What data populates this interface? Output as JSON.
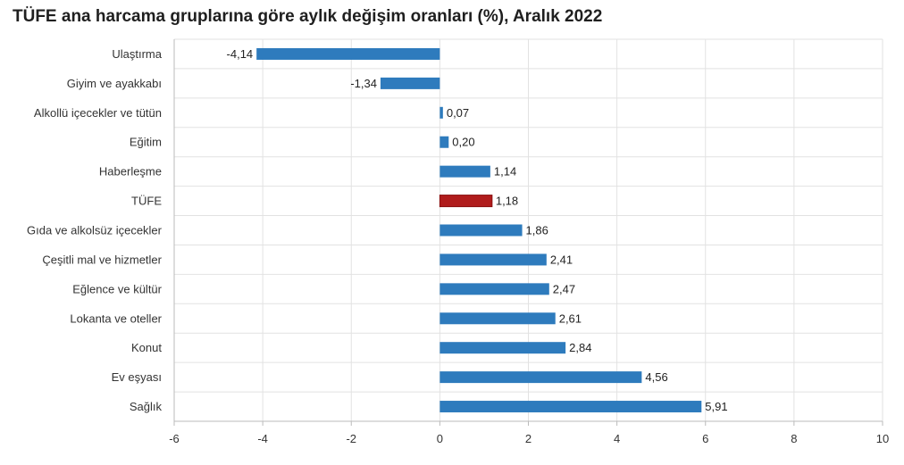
{
  "chart_data": {
    "type": "bar",
    "orientation": "horizontal",
    "title": "TÜFE ana harcama gruplarına göre aylık değişim oranları (%), Aralık 2022",
    "categories": [
      "Ulaştırma",
      "Giyim ve ayakkabı",
      "Alkollü içecekler ve tütün",
      "Eğitim",
      "Haberleşme",
      "TÜFE",
      "Gıda ve alkolsüz içecekler",
      "Çeşitli mal ve hizmetler",
      "Eğlence ve kültür",
      "Lokanta ve oteller",
      "Konut",
      "Ev eşyası",
      "Sağlık"
    ],
    "values": [
      -4.14,
      -1.34,
      0.07,
      0.2,
      1.14,
      1.18,
      1.86,
      2.41,
      2.47,
      2.61,
      2.84,
      4.56,
      5.91
    ],
    "value_labels": [
      "-4,14",
      "-1,34",
      "0,07",
      "0,20",
      "1,14",
      "1,18",
      "1,86",
      "2,41",
      "2,47",
      "2,61",
      "2,84",
      "4,56",
      "5,91"
    ],
    "highlight_category": "TÜFE",
    "xlim": [
      -6,
      10
    ],
    "xticks": [
      "-6",
      "-4",
      "-2",
      "0",
      "2",
      "4",
      "6",
      "8",
      "10"
    ],
    "grid": true,
    "colors": {
      "bar": "#2e7bbd",
      "highlight": "#b01c1c",
      "grid": "#e2e2e2",
      "axis": "#bbbbbb"
    }
  }
}
